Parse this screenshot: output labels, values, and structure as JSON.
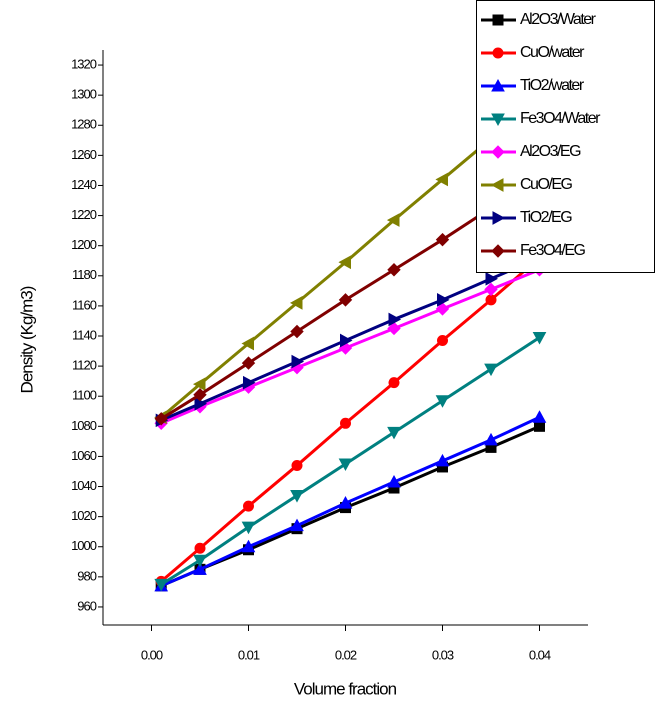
{
  "chart_data": {
    "type": "line",
    "x_label": "Volume fraction",
    "y_label": "Density (Kg/m3)",
    "x": [
      0.001,
      0.005,
      0.01,
      0.015,
      0.02,
      0.025,
      0.03,
      0.035,
      0.04
    ],
    "xlim": [
      -0.005,
      0.045
    ],
    "xticks": [
      {
        "value": 0,
        "label": "0.00"
      },
      {
        "value": 0.01,
        "label": "0.01"
      },
      {
        "value": 0.02,
        "label": "0.02"
      },
      {
        "value": 0.03,
        "label": "0.03"
      },
      {
        "value": 0.04,
        "label": "0.04"
      }
    ],
    "ylim": [
      950,
      1330
    ],
    "yticks": [
      960,
      980,
      1000,
      1020,
      1040,
      1060,
      1080,
      1100,
      1120,
      1140,
      1160,
      1180,
      1200,
      1220,
      1240,
      1260,
      1280,
      1300,
      1320
    ],
    "legend": "top-right",
    "series": [
      {
        "name": "Al2O3/Water",
        "color": "#000000",
        "marker": "square",
        "values": [
          974,
          985,
          998,
          1012,
          1026,
          1039,
          1053,
          1066,
          1080
        ]
      },
      {
        "name": "CuO/water",
        "color": "#ff0000",
        "marker": "circle",
        "values": [
          977,
          999,
          1027,
          1054,
          1082,
          1109,
          1137,
          1164,
          1192
        ]
      },
      {
        "name": "TiO2/water",
        "color": "#0000ff",
        "marker": "triangle-up",
        "values": [
          974,
          985,
          1000,
          1014,
          1029,
          1043,
          1057,
          1071,
          1086
        ]
      },
      {
        "name": "Fe3O4/Water",
        "color": "#008080",
        "marker": "triangle-down",
        "values": [
          975,
          991,
          1013,
          1034,
          1055,
          1076,
          1097,
          1118,
          1139
        ]
      },
      {
        "name": "Al2O3/EG",
        "color": "#ff00ff",
        "marker": "diamond",
        "values": [
          1082,
          1093,
          1106,
          1119,
          1132,
          1145,
          1158,
          1171,
          1184
        ]
      },
      {
        "name": "CuO/EG",
        "color": "#808000",
        "marker": "triangle-left",
        "values": [
          1086,
          1108,
          1135,
          1162,
          1189,
          1217,
          1244,
          1271,
          1298
        ]
      },
      {
        "name": "TiO2/EG",
        "color": "#000080",
        "marker": "triangle-right",
        "values": [
          1084,
          1095,
          1109,
          1123,
          1137,
          1151,
          1164,
          1178,
          1192
        ]
      },
      {
        "name": "Fe3O4/EG",
        "color": "#800000",
        "marker": "diamond",
        "values": [
          1085,
          1101,
          1122,
          1143,
          1164,
          1184,
          1204,
          1225,
          1245
        ]
      }
    ]
  }
}
